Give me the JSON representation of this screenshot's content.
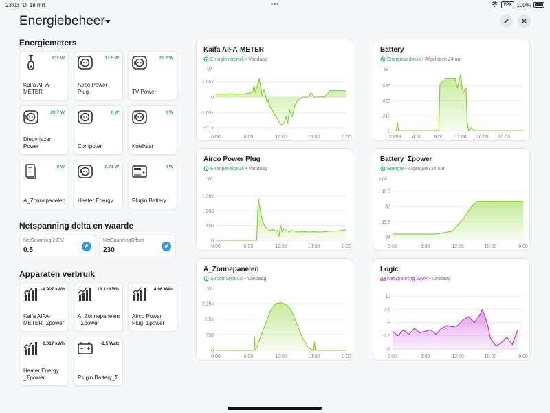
{
  "status_bar": {
    "time": "23:03",
    "date": "Di 18 mrt",
    "battery": "100%",
    "vpn": "VPN"
  },
  "page": {
    "title": "Energiebeheer"
  },
  "sections": {
    "meters_title": "Energiemeters",
    "netspanning_title": "Netspanning delta en waarde",
    "apparaten_title": "Apparaten verbruik"
  },
  "meters": [
    {
      "name": "Kaifa AIFA-METER",
      "value": "132 W",
      "icon": "meter-icon"
    },
    {
      "name": "Airco Power Plug",
      "value": "13.5 W",
      "icon": "plug-icon"
    },
    {
      "name": "TV Power",
      "value": "21.2 W",
      "icon": "plug-icon"
    },
    {
      "name": "Diepvriezer Power",
      "value": "20.7 W",
      "icon": "plug-icon"
    },
    {
      "name": "Computer",
      "value": "0 W",
      "icon": "plug-icon"
    },
    {
      "name": "Koelkast",
      "value": "0 W",
      "icon": "plug-icon"
    },
    {
      "name": "A_Zonnepanelen",
      "value": "0 W",
      "icon": "inverter-icon"
    },
    {
      "name": "Heater Energy",
      "value": "0.71 W",
      "icon": "plug-icon"
    },
    {
      "name": "Plugin Battery",
      "value": "0 W",
      "icon": "battery-unit-icon"
    }
  ],
  "netspanning": [
    {
      "label": "NetSpanning 230V",
      "value": "0.5",
      "button": "#"
    },
    {
      "label": "NetSpanningOffset",
      "value": "230",
      "button": "#"
    }
  ],
  "apparaten": [
    {
      "name": "Kaifa AIFA-METER_Σpower",
      "value": "-4.907 kWh",
      "icon": "chart-up-icon"
    },
    {
      "name": "A_Zonnepanelen _Σpower",
      "value": "16.12 kWh",
      "icon": "chart-up-icon"
    },
    {
      "name": "Airco Power Plug_Σpower",
      "value": "4.96 kWh",
      "icon": "chart-up-icon"
    },
    {
      "name": "Heater Energy _Σpower",
      "value": "0.017 kWh",
      "icon": "chart-up-icon"
    },
    {
      "name": "Plugin Battery_Σ",
      "value": "-2.5 Watt",
      "icon": "car-battery-icon"
    }
  ],
  "colors": {
    "green": "#7ed321",
    "green_text": "#27ae60",
    "purple": "#c026d3",
    "blue": "#2f9bdd"
  },
  "chart_data": [
    {
      "id": "kaifa",
      "type": "area",
      "title": "Kaifa AIFA-METER",
      "metric": "Energieverbruik",
      "period": "Vandaag",
      "color": "#7ed321",
      "ylabel": "W",
      "yticks": [
        "1.05k",
        "0",
        "-1.05k",
        "-2.1k"
      ],
      "ytick_values": [
        1050,
        0,
        -1050,
        -2100
      ],
      "ylim": [
        -2300,
        1600
      ],
      "xticks": [
        "0:00",
        "6:00",
        "12:00",
        "18:00",
        "0:00"
      ],
      "xtick_values": [
        0,
        6,
        12,
        18,
        24
      ],
      "xlim": [
        0,
        24
      ],
      "baseline": 0,
      "x": [
        0,
        1,
        2,
        3,
        4,
        5,
        6,
        6.8,
        7,
        7.3,
        7.5,
        8,
        8.5,
        8.8,
        9,
        9.4,
        9.6,
        10,
        10.5,
        11,
        11.5,
        12,
        12.3,
        12.6,
        12.9,
        13.2,
        13.5,
        14,
        14.5,
        15,
        16,
        17,
        17.5,
        18,
        19,
        19.8,
        20,
        21,
        22,
        23,
        24
      ],
      "y": [
        200,
        220,
        210,
        230,
        200,
        220,
        260,
        350,
        800,
        300,
        650,
        1250,
        100,
        500,
        350,
        -400,
        -200,
        -700,
        -1000,
        -1300,
        -1600,
        -1900,
        -1850,
        -1700,
        -1300,
        -1800,
        -850,
        -1350,
        -600,
        -250,
        0,
        0,
        300,
        0,
        0,
        20,
        0,
        450,
        450,
        450,
        420
      ]
    },
    {
      "id": "battery",
      "type": "area",
      "title": "Battery",
      "metric": "Energieverbruik",
      "period": "Afgelopen 24 uur",
      "color": "#7ed321",
      "ylabel": "W",
      "yticks": [
        "630",
        "420",
        "210",
        "0"
      ],
      "ytick_values": [
        630,
        420,
        210,
        0
      ],
      "ylim": [
        0,
        800
      ],
      "xticks": [
        "23:59",
        "4:00",
        "8:00",
        "12:00",
        "16:00",
        "20:00"
      ],
      "xtick_values": [
        0,
        4,
        8,
        12,
        16,
        20
      ],
      "xlim": [
        -0.5,
        23.5
      ],
      "baseline": 0,
      "x": [
        0,
        0.2,
        0.4,
        0.6,
        7,
        8,
        8.2,
        8.5,
        9,
        9.2,
        11,
        11.4,
        12,
        12.3,
        12.5,
        13,
        13.2,
        13.5,
        14,
        14.5,
        15,
        23.5
      ],
      "y": [
        0,
        0,
        120,
        0,
        0,
        0,
        650,
        690,
        700,
        730,
        730,
        600,
        790,
        600,
        540,
        600,
        130,
        0,
        40,
        0,
        0,
        0
      ]
    },
    {
      "id": "airco",
      "type": "area",
      "title": "Airco Power Plug",
      "metric": "Energieverbruik",
      "period": "Vandaag",
      "color": "#7ed321",
      "ylabel": "W",
      "yticks": [
        "1.35k",
        "900",
        "450",
        "0"
      ],
      "ytick_values": [
        1350,
        900,
        450,
        0
      ],
      "ylim": [
        0,
        1750
      ],
      "xticks": [
        "0:00",
        "6:00",
        "12:00",
        "18:00",
        "0:00"
      ],
      "xtick_values": [
        0,
        6,
        12,
        18,
        24
      ],
      "xlim": [
        0,
        24
      ],
      "baseline": 0,
      "x": [
        0,
        7.5,
        7.8,
        8.1,
        8.4,
        8.7,
        9,
        9.5,
        10,
        10.5,
        11,
        11.3,
        11.6,
        11.9,
        12.2,
        12.5,
        13,
        13.5,
        14,
        15,
        16,
        17,
        18,
        19,
        20,
        21,
        22,
        23,
        24
      ],
      "y": [
        0,
        0,
        1300,
        1000,
        700,
        550,
        420,
        350,
        300,
        330,
        280,
        300,
        120,
        450,
        250,
        360,
        300,
        250,
        300,
        250,
        270,
        250,
        260,
        250,
        260,
        280,
        280,
        300,
        320
      ]
    },
    {
      "id": "batsum",
      "type": "area",
      "title": "Battery_Σpower",
      "metric": "Energie",
      "period": "Afgelopen 24 uur",
      "color": "#7ed321",
      "ylabel": "kWh",
      "yticks": [
        "38.5",
        "37",
        "35.5",
        "34"
      ],
      "ytick_values": [
        38.5,
        37,
        35.5,
        34
      ],
      "ylim": [
        33.7,
        39.3
      ],
      "xticks": [
        "0:00",
        "6:00",
        "12:00",
        "18:00",
        "0:00"
      ],
      "xtick_values": [
        0,
        6,
        12,
        18,
        24
      ],
      "xlim": [
        0,
        24
      ],
      "baseline": 33.7,
      "x": [
        0,
        8,
        9,
        11,
        13,
        14.5,
        15.5,
        24
      ],
      "y": [
        34.3,
        34.3,
        34.4,
        34.6,
        35.8,
        37.0,
        37.5,
        37.5
      ]
    },
    {
      "id": "zon",
      "type": "area",
      "title": "A_Zonnepanelen",
      "metric": "Stroomverbruik",
      "period": "Vandaag",
      "color": "#7ed321",
      "ylabel": "W",
      "yticks": [
        "2.25k",
        "1.5k",
        "750",
        "0"
      ],
      "ytick_values": [
        2250,
        1500,
        750,
        0
      ],
      "ylim": [
        0,
        2750
      ],
      "xticks": [
        "0:00",
        "6:00",
        "12:00",
        "18:00",
        "0:00"
      ],
      "xtick_values": [
        0,
        6,
        12,
        18,
        24
      ],
      "xlim": [
        0,
        24
      ],
      "baseline": 0,
      "x": [
        0,
        7,
        7.1,
        7.2,
        7.4,
        8,
        9,
        10,
        11,
        12,
        13,
        14,
        15,
        16,
        17,
        18,
        18.1,
        18.3,
        18.5,
        24
      ],
      "y": [
        0,
        0,
        650,
        0,
        80,
        500,
        1200,
        1900,
        2250,
        2300,
        2200,
        1850,
        1200,
        550,
        120,
        0,
        400,
        0,
        0,
        0
      ]
    },
    {
      "id": "logic",
      "type": "area",
      "title": "Logic",
      "metric": "NetSpanning 230V",
      "period": "Vandaag",
      "color": "#c026d3",
      "ylabel": "",
      "yticks": [
        "12",
        "7.5",
        "3",
        "-1.5",
        "-6"
      ],
      "ytick_values": [
        12,
        7.5,
        3,
        -1.5,
        -6
      ],
      "ylim": [
        -6.5,
        13
      ],
      "xticks": [
        "0:00",
        "6:00",
        "12:00",
        "18:00",
        "0:00"
      ],
      "xtick_values": [
        0,
        6,
        12,
        18,
        24
      ],
      "xlim": [
        0,
        24
      ],
      "baseline": -6.5,
      "x": [
        0,
        1,
        2,
        3,
        4,
        5,
        6,
        7,
        8,
        9,
        10,
        11,
        12,
        13,
        14,
        15,
        16,
        16.5,
        17,
        17.5,
        18,
        19,
        20,
        21,
        22,
        23
      ],
      "y": [
        0,
        -1.5,
        0.5,
        -1,
        1,
        -0.5,
        0,
        0.5,
        -1,
        1,
        2,
        1.5,
        2,
        4,
        5,
        3,
        5.5,
        7.5,
        5,
        2,
        -2.5,
        -5,
        -4,
        -2,
        -4.5,
        0.5
      ]
    }
  ]
}
